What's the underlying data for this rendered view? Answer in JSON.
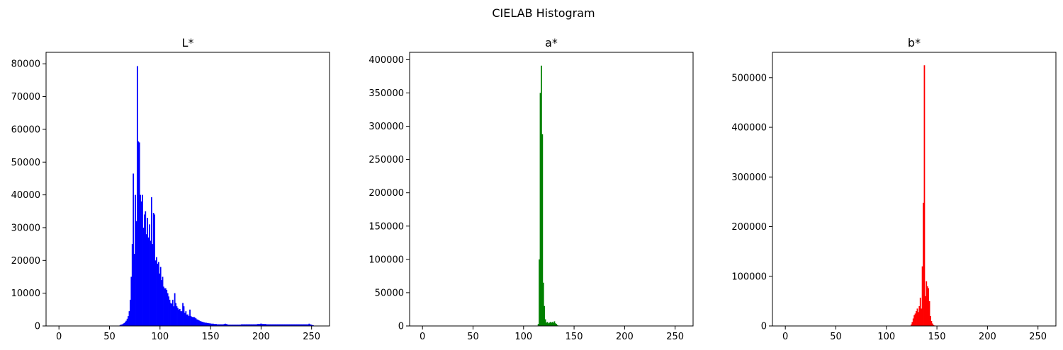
{
  "figure": {
    "title": "CIELAB Histogram"
  },
  "chart_data": [
    {
      "type": "bar",
      "title": "L*",
      "color": "#0000ff",
      "xlim": [
        -12.75,
        267.75
      ],
      "ylim": [
        0,
        83500
      ],
      "xticks": [
        0,
        50,
        100,
        150,
        200,
        250
      ],
      "yticks": [
        0,
        10000,
        20000,
        30000,
        40000,
        50000,
        60000,
        70000,
        80000
      ],
      "bins": [
        [
          60,
          300
        ],
        [
          61,
          400
        ],
        [
          62,
          500
        ],
        [
          63,
          700
        ],
        [
          64,
          900
        ],
        [
          65,
          1200
        ],
        [
          66,
          1600
        ],
        [
          67,
          2200
        ],
        [
          68,
          3000
        ],
        [
          69,
          4500
        ],
        [
          70,
          8000
        ],
        [
          71,
          15000
        ],
        [
          72,
          25000
        ],
        [
          73,
          46500
        ],
        [
          74,
          22000
        ],
        [
          75,
          40000
        ],
        [
          76,
          32000
        ],
        [
          77,
          79300
        ],
        [
          78,
          56300
        ],
        [
          79,
          56000
        ],
        [
          80,
          40000
        ],
        [
          81,
          38000
        ],
        [
          82,
          40000
        ],
        [
          83,
          30000
        ],
        [
          84,
          34000
        ],
        [
          85,
          35000
        ],
        [
          86,
          28000
        ],
        [
          87,
          33000
        ],
        [
          88,
          27000
        ],
        [
          89,
          31000
        ],
        [
          90,
          26000
        ],
        [
          91,
          39300
        ],
        [
          92,
          25000
        ],
        [
          93,
          34500
        ],
        [
          94,
          34000
        ],
        [
          95,
          20000
        ],
        [
          96,
          21000
        ],
        [
          97,
          19000
        ],
        [
          98,
          19500
        ],
        [
          99,
          16000
        ],
        [
          100,
          18000
        ],
        [
          101,
          14000
        ],
        [
          102,
          15000
        ],
        [
          103,
          12000
        ],
        [
          104,
          11500
        ],
        [
          105,
          11500
        ],
        [
          106,
          11000
        ],
        [
          107,
          10000
        ],
        [
          108,
          9000
        ],
        [
          109,
          8000
        ],
        [
          110,
          7000
        ],
        [
          111,
          6800
        ],
        [
          112,
          8000
        ],
        [
          113,
          6000
        ],
        [
          114,
          10000
        ],
        [
          115,
          7000
        ],
        [
          116,
          6000
        ],
        [
          117,
          5500
        ],
        [
          118,
          5000
        ],
        [
          119,
          5200
        ],
        [
          120,
          4500
        ],
        [
          121,
          4500
        ],
        [
          122,
          7000
        ],
        [
          123,
          6000
        ],
        [
          124,
          4000
        ],
        [
          125,
          4500
        ],
        [
          126,
          3500
        ],
        [
          127,
          3500
        ],
        [
          128,
          3000
        ],
        [
          129,
          5000
        ],
        [
          130,
          3000
        ],
        [
          131,
          2800
        ],
        [
          132,
          2600
        ],
        [
          133,
          2800
        ],
        [
          134,
          2500
        ],
        [
          135,
          2300
        ],
        [
          136,
          2000
        ],
        [
          137,
          1900
        ],
        [
          138,
          1700
        ],
        [
          139,
          1500
        ],
        [
          140,
          1400
        ],
        [
          141,
          1300
        ],
        [
          142,
          1200
        ],
        [
          143,
          1100
        ],
        [
          144,
          1000
        ],
        [
          145,
          1000
        ],
        [
          146,
          900
        ],
        [
          147,
          900
        ],
        [
          148,
          800
        ],
        [
          149,
          800
        ],
        [
          150,
          700
        ],
        [
          151,
          700
        ],
        [
          152,
          700
        ],
        [
          153,
          600
        ],
        [
          154,
          600
        ],
        [
          155,
          600
        ],
        [
          156,
          500
        ],
        [
          157,
          500
        ],
        [
          158,
          500
        ],
        [
          159,
          500
        ],
        [
          160,
          500
        ],
        [
          161,
          500
        ],
        [
          162,
          500
        ],
        [
          163,
          600
        ],
        [
          164,
          700
        ],
        [
          165,
          600
        ],
        [
          166,
          500
        ],
        [
          167,
          400
        ],
        [
          168,
          400
        ],
        [
          169,
          400
        ],
        [
          170,
          400
        ],
        [
          171,
          400
        ],
        [
          172,
          400
        ],
        [
          173,
          400
        ],
        [
          174,
          400
        ],
        [
          175,
          400
        ],
        [
          176,
          400
        ],
        [
          177,
          400
        ],
        [
          178,
          400
        ],
        [
          179,
          400
        ],
        [
          180,
          500
        ],
        [
          181,
          500
        ],
        [
          182,
          500
        ],
        [
          183,
          500
        ],
        [
          184,
          500
        ],
        [
          185,
          500
        ],
        [
          186,
          500
        ],
        [
          187,
          500
        ],
        [
          188,
          500
        ],
        [
          189,
          500
        ],
        [
          190,
          500
        ],
        [
          191,
          500
        ],
        [
          192,
          500
        ],
        [
          193,
          500
        ],
        [
          194,
          500
        ],
        [
          195,
          500
        ],
        [
          196,
          600
        ],
        [
          197,
          600
        ],
        [
          198,
          600
        ],
        [
          199,
          700
        ],
        [
          200,
          700
        ],
        [
          201,
          600
        ],
        [
          202,
          600
        ],
        [
          203,
          600
        ],
        [
          204,
          600
        ],
        [
          205,
          500
        ],
        [
          206,
          500
        ],
        [
          207,
          500
        ],
        [
          208,
          500
        ],
        [
          209,
          500
        ],
        [
          210,
          500
        ],
        [
          211,
          500
        ],
        [
          212,
          500
        ],
        [
          213,
          500
        ],
        [
          214,
          500
        ],
        [
          215,
          500
        ],
        [
          216,
          500
        ],
        [
          217,
          500
        ],
        [
          218,
          500
        ],
        [
          219,
          500
        ],
        [
          220,
          500
        ],
        [
          221,
          500
        ],
        [
          222,
          500
        ],
        [
          223,
          500
        ],
        [
          224,
          500
        ],
        [
          225,
          500
        ],
        [
          226,
          500
        ],
        [
          227,
          500
        ],
        [
          228,
          500
        ],
        [
          229,
          500
        ],
        [
          230,
          500
        ],
        [
          231,
          500
        ],
        [
          232,
          500
        ],
        [
          233,
          500
        ],
        [
          234,
          500
        ],
        [
          235,
          500
        ],
        [
          236,
          500
        ],
        [
          237,
          500
        ],
        [
          238,
          500
        ],
        [
          239,
          500
        ],
        [
          240,
          500
        ],
        [
          241,
          500
        ],
        [
          242,
          500
        ],
        [
          243,
          500
        ],
        [
          244,
          500
        ],
        [
          245,
          500
        ],
        [
          246,
          500
        ],
        [
          247,
          700
        ],
        [
          248,
          500
        ],
        [
          249,
          400
        ],
        [
          250,
          300
        ],
        [
          251,
          200
        ]
      ]
    },
    {
      "type": "bar",
      "title": "a*",
      "color": "#008000",
      "xlim": [
        -12.75,
        267.75
      ],
      "ylim": [
        0,
        411000
      ],
      "xticks": [
        0,
        50,
        100,
        150,
        200,
        250
      ],
      "yticks": [
        0,
        50000,
        100000,
        150000,
        200000,
        250000,
        300000,
        350000,
        400000
      ],
      "bins": [
        [
          113,
          500
        ],
        [
          114,
          3000
        ],
        [
          115,
          100000
        ],
        [
          116,
          350000
        ],
        [
          117,
          391000
        ],
        [
          118,
          288000
        ],
        [
          119,
          65000
        ],
        [
          120,
          30000
        ],
        [
          121,
          10000
        ],
        [
          122,
          5000
        ],
        [
          123,
          6000
        ],
        [
          124,
          4000
        ],
        [
          125,
          5000
        ],
        [
          126,
          6000
        ],
        [
          127,
          5000
        ],
        [
          128,
          6000
        ],
        [
          129,
          5000
        ],
        [
          130,
          7000
        ],
        [
          131,
          4000
        ],
        [
          132,
          3000
        ],
        [
          133,
          1000
        ],
        [
          134,
          500
        ]
      ]
    },
    {
      "type": "bar",
      "title": "b*",
      "color": "#ff0000",
      "xlim": [
        -12.75,
        267.75
      ],
      "ylim": [
        0,
        551000
      ],
      "xticks": [
        0,
        50,
        100,
        150,
        200,
        250
      ],
      "yticks": [
        0,
        100000,
        200000,
        300000,
        400000,
        500000
      ],
      "bins": [
        [
          124,
          3000
        ],
        [
          125,
          8000
        ],
        [
          126,
          15000
        ],
        [
          127,
          22000
        ],
        [
          128,
          25000
        ],
        [
          129,
          30000
        ],
        [
          130,
          35000
        ],
        [
          131,
          28000
        ],
        [
          132,
          40000
        ],
        [
          133,
          57000
        ],
        [
          134,
          35000
        ],
        [
          135,
          120000
        ],
        [
          136,
          248000
        ],
        [
          137,
          525000
        ],
        [
          138,
          60000
        ],
        [
          139,
          90000
        ],
        [
          140,
          80000
        ],
        [
          141,
          76000
        ],
        [
          142,
          50000
        ],
        [
          143,
          20000
        ],
        [
          144,
          10000
        ],
        [
          145,
          5000
        ],
        [
          146,
          2000
        ],
        [
          147,
          1000
        ]
      ]
    }
  ]
}
